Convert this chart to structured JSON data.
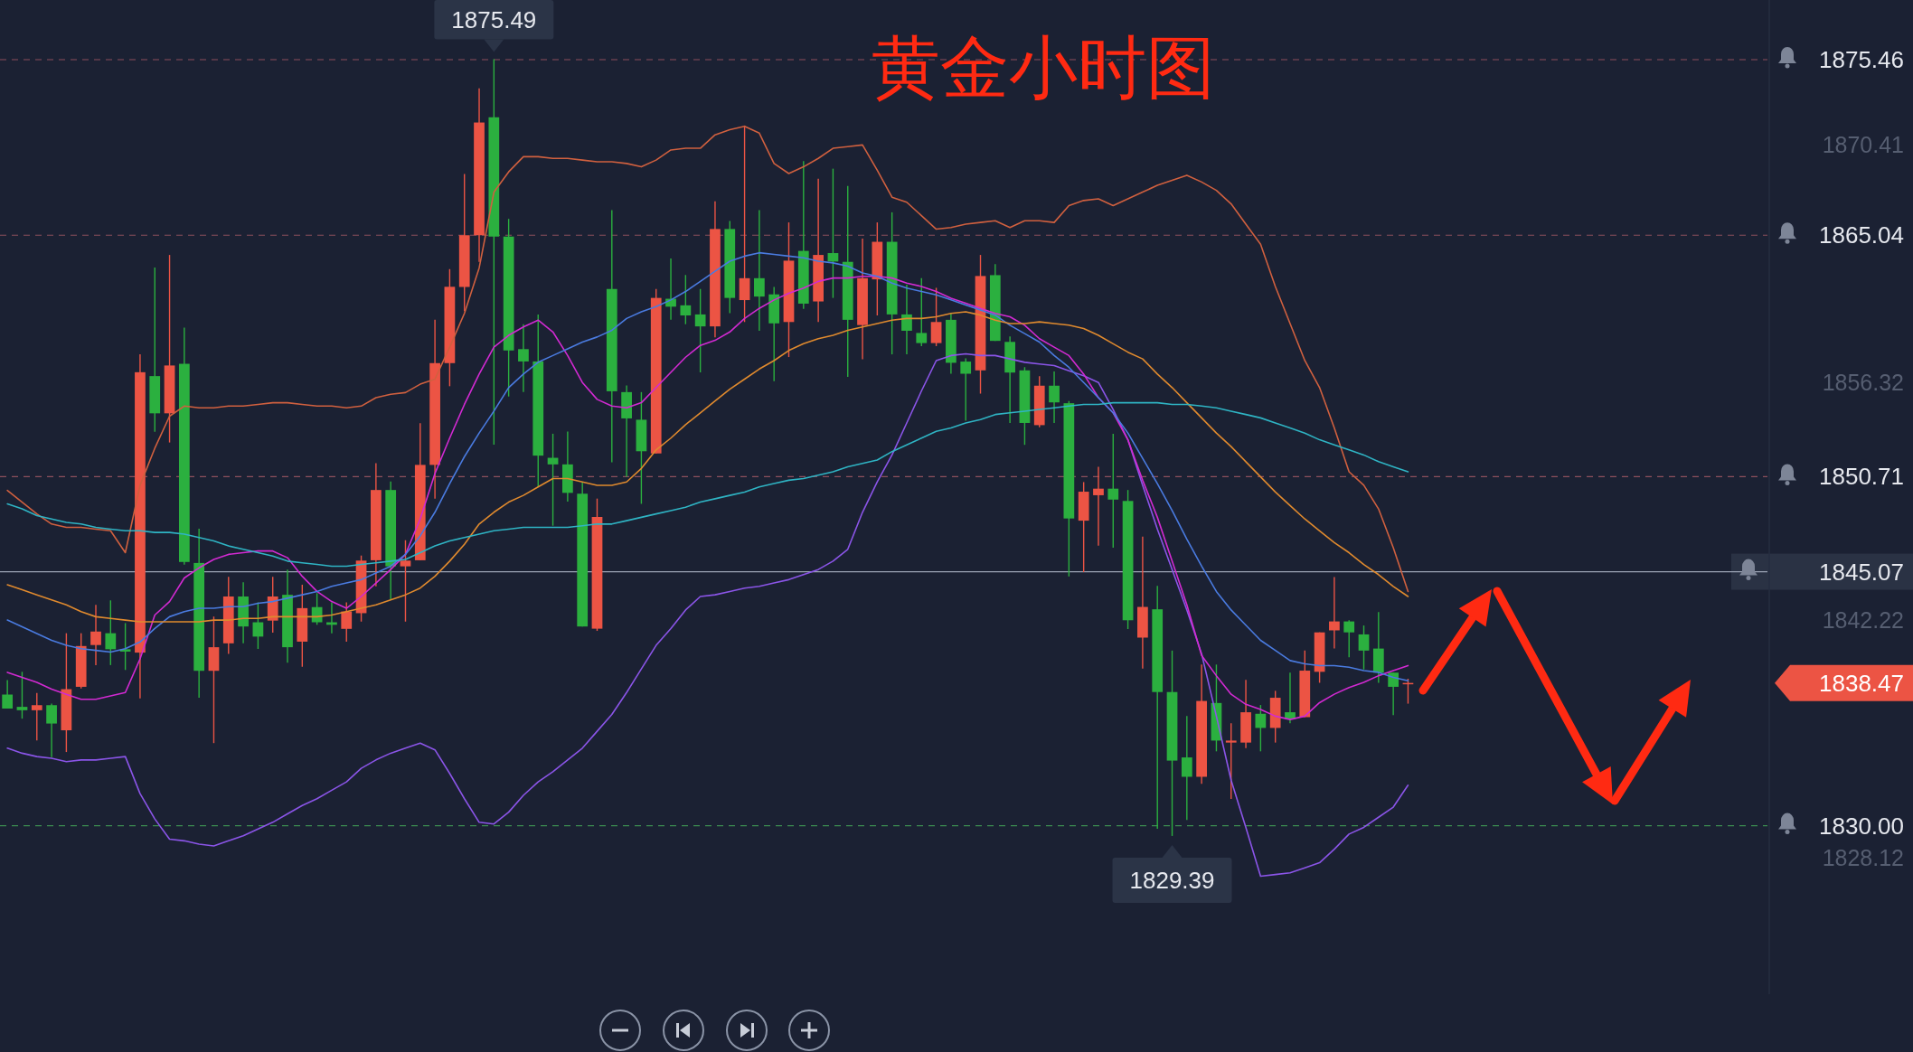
{
  "chart_data": {
    "type": "candlestick",
    "title": "黄金小时图",
    "categories": [
      null,
      null,
      null,
      null,
      null,
      null,
      null,
      null,
      null,
      null,
      null,
      null,
      null,
      null,
      null,
      null,
      null,
      null,
      null,
      null,
      null,
      null,
      null,
      null,
      null,
      null,
      null,
      null,
      null,
      null,
      null,
      null,
      null,
      null,
      null,
      null,
      null,
      null,
      null,
      null,
      null,
      null,
      null,
      null,
      null,
      null,
      null,
      null,
      null,
      null,
      null,
      null,
      null,
      null,
      null,
      null,
      null,
      null,
      null,
      null,
      null,
      null,
      null,
      null,
      null,
      null,
      null,
      null,
      null,
      null,
      null,
      null,
      null,
      null,
      null,
      null,
      null,
      null,
      null,
      null,
      null,
      null,
      null,
      null,
      null,
      null,
      null,
      null,
      null,
      null,
      null,
      null,
      null,
      null,
      null,
      null,
      null,
      null,
      null,
      null,
      null,
      null,
      null,
      null,
      null,
      null,
      null,
      null,
      null,
      null,
      null,
      null,
      null,
      null,
      null,
      null,
      null,
      null,
      null,
      null
    ],
    "ohlc": [
      [
        1837.78,
        1838.64,
        1836.95,
        1836.95
      ],
      [
        1837.05,
        1839.13,
        1836.35,
        1836.85
      ],
      [
        1836.85,
        1837.88,
        1835.06,
        1837.15
      ],
      [
        1837.15,
        1837.25,
        1834.07,
        1836.06
      ],
      [
        1835.66,
        1841.42,
        1834.37,
        1838.1
      ],
      [
        1838.24,
        1841.42,
        1838.14,
        1840.66
      ],
      [
        1840.72,
        1843.11,
        1839.53,
        1841.52
      ],
      [
        1841.42,
        1843.37,
        1839.53,
        1840.47
      ],
      [
        1840.47,
        1842.02,
        1839.24,
        1840.33
      ],
      [
        1840.27,
        1857.97,
        1837.55,
        1856.91
      ],
      [
        1856.68,
        1863.13,
        1853.38,
        1854.47
      ],
      [
        1854.47,
        1863.87,
        1852.74,
        1857.31
      ],
      [
        1857.41,
        1859.56,
        1845.49,
        1845.65
      ],
      [
        1845.59,
        1847.62,
        1837.59,
        1839.19
      ],
      [
        1839.19,
        1842.41,
        1834.9,
        1840.59
      ],
      [
        1840.82,
        1844.76,
        1840.19,
        1843.6
      ],
      [
        1843.6,
        1844.44,
        1840.82,
        1841.82
      ],
      [
        1842.07,
        1843.25,
        1840.49,
        1841.22
      ],
      [
        1842.17,
        1844.76,
        1841.46,
        1843.6
      ],
      [
        1843.7,
        1845.19,
        1839.67,
        1840.59
      ],
      [
        1840.92,
        1844.3,
        1839.43,
        1842.91
      ],
      [
        1842.97,
        1843.8,
        1841.92,
        1842.07
      ],
      [
        1842.07,
        1843.25,
        1841.42,
        1841.92
      ],
      [
        1841.68,
        1843.25,
        1840.92,
        1842.71
      ],
      [
        1842.61,
        1846.03,
        1842.11,
        1845.73
      ],
      [
        1845.75,
        1851.51,
        1844.2,
        1849.92
      ],
      [
        1849.92,
        1850.42,
        1843.41,
        1845.39
      ],
      [
        1845.39,
        1846.94,
        1842.11,
        1845.73
      ],
      [
        1845.75,
        1853.88,
        1845.75,
        1851.41
      ],
      [
        1851.41,
        1860.03,
        1849.41,
        1857.45
      ],
      [
        1857.45,
        1863.03,
        1856.08,
        1861.98
      ],
      [
        1861.97,
        1868.68,
        1860.54,
        1865.04
      ],
      [
        1865.04,
        1873.76,
        1863.46,
        1871.73
      ],
      [
        1872.04,
        1875.49,
        1852.61,
        1864.96
      ],
      [
        1864.96,
        1866.01,
        1855.47,
        1858.2
      ],
      [
        1858.28,
        1859.76,
        1855.73,
        1857.55
      ],
      [
        1857.55,
        1860.34,
        1850.09,
        1851.96
      ],
      [
        1851.83,
        1853.26,
        1847.8,
        1851.44
      ],
      [
        1851.44,
        1853.39,
        1849.23,
        1849.75
      ],
      [
        1849.7,
        1850.4,
        1841.82,
        1841.82
      ],
      [
        1841.69,
        1849.41,
        1841.56,
        1848.32
      ],
      [
        1861.85,
        1866.53,
        1851.57,
        1855.78
      ],
      [
        1855.73,
        1856.12,
        1850.71,
        1854.17
      ],
      [
        1854.09,
        1855.73,
        1849.1,
        1852.22
      ],
      [
        1852.09,
        1861.85,
        1852.09,
        1861.32
      ],
      [
        1861.27,
        1863.66,
        1860.02,
        1860.8
      ],
      [
        1860.88,
        1862.68,
        1859.76,
        1860.28
      ],
      [
        1860.34,
        1861.85,
        1856.9,
        1859.63
      ],
      [
        1859.63,
        1867.05,
        1858.98,
        1865.41
      ],
      [
        1865.41,
        1865.88,
        1860.41,
        1861.32
      ],
      [
        1861.19,
        1871.55,
        1859.89,
        1862.49
      ],
      [
        1862.49,
        1866.53,
        1859.37,
        1861.4
      ],
      [
        1861.53,
        1861.97,
        1856.38,
        1859.81
      ],
      [
        1859.89,
        1865.8,
        1857.81,
        1863.53
      ],
      [
        1864.11,
        1869.44,
        1860.67,
        1860.98
      ],
      [
        1861.11,
        1868.4,
        1859.89,
        1863.87
      ],
      [
        1863.98,
        1868.99,
        1861.32,
        1863.48
      ],
      [
        1863.46,
        1867.96,
        1856.64,
        1860.02
      ],
      [
        1859.71,
        1864.84,
        1857.68,
        1862.49
      ],
      [
        1862.42,
        1865.8,
        1860.28,
        1864.65
      ],
      [
        1864.65,
        1866.4,
        1857.97,
        1860.34
      ],
      [
        1860.34,
        1862.1,
        1857.97,
        1859.37
      ],
      [
        1859.24,
        1862.49,
        1858.46,
        1858.64
      ],
      [
        1858.64,
        1861.92,
        1858.46,
        1859.89
      ],
      [
        1860.02,
        1860.41,
        1856.82,
        1857.47
      ],
      [
        1857.54,
        1857.73,
        1854.03,
        1856.82
      ],
      [
        1857.02,
        1863.87,
        1855.64,
        1862.62
      ],
      [
        1862.67,
        1863.32,
        1858.77,
        1858.77
      ],
      [
        1858.71,
        1859.03,
        1853.9,
        1856.89
      ],
      [
        1857.02,
        1857.21,
        1852.6,
        1853.9
      ],
      [
        1853.77,
        1856.68,
        1853.64,
        1856.11
      ],
      [
        1856.11,
        1856.95,
        1853.9,
        1855.12
      ],
      [
        1855.07,
        1855.2,
        1844.79,
        1848.23
      ],
      [
        1848.1,
        1850.39,
        1845.05,
        1849.82
      ],
      [
        1849.61,
        1851.3,
        1846.62,
        1850.0
      ],
      [
        1850.0,
        1853.25,
        1846.49,
        1849.35
      ],
      [
        1849.27,
        1849.92,
        1841.67,
        1842.19
      ],
      [
        1841.16,
        1847.15,
        1839.32,
        1842.98
      ],
      [
        1842.84,
        1844.23,
        1829.81,
        1837.93
      ],
      [
        1837.93,
        1840.39,
        1829.39,
        1833.86
      ],
      [
        1834.05,
        1836.51,
        1830.34,
        1832.9
      ],
      [
        1832.9,
        1839.56,
        1832.49,
        1837.4
      ],
      [
        1837.28,
        1839.56,
        1834.41,
        1835.05
      ],
      [
        1834.93,
        1836.08,
        1831.58,
        1835.05
      ],
      [
        1834.93,
        1838.65,
        1834.6,
        1836.73
      ],
      [
        1836.64,
        1837.16,
        1834.41,
        1835.8
      ],
      [
        1835.8,
        1838.0,
        1834.93,
        1837.59
      ],
      [
        1836.73,
        1839.08,
        1836.08,
        1836.32
      ],
      [
        1836.44,
        1840.39,
        1836.44,
        1839.2
      ],
      [
        1839.13,
        1841.47,
        1838.48,
        1841.47
      ],
      [
        1841.59,
        1844.75,
        1840.51,
        1842.12
      ],
      [
        1842.12,
        1842.19,
        1839.99,
        1841.47
      ],
      [
        1841.35,
        1841.88,
        1839.27,
        1840.39
      ],
      [
        1840.51,
        1842.67,
        1838.48,
        1839.08
      ],
      [
        1839.08,
        1839.08,
        1836.56,
        1838.24
      ],
      [
        1838.41,
        1838.72,
        1837.24,
        1838.47
      ],
      null,
      null,
      null,
      null,
      null,
      null,
      null,
      null,
      null,
      null,
      null,
      null,
      null,
      null,
      null,
      null,
      null,
      null,
      null,
      null,
      null,
      null,
      null,
      null
    ],
    "colors": [
      "#2bb03f",
      "#2bb03f",
      "#ec5444",
      "#2bb03f",
      "#ec5444",
      "#ec5444",
      "#ec5444",
      "#2bb03f",
      "#2bb03f",
      "#ec5444",
      "#2bb03f",
      "#ec5444",
      "#2bb03f",
      "#2bb03f",
      "#ec5444",
      "#ec5444",
      "#2bb03f",
      "#2bb03f",
      "#ec5444",
      "#2bb03f",
      "#ec5444",
      "#2bb03f",
      "#2bb03f",
      "#ec5444",
      "#ec5444",
      "#ec5444",
      "#2bb03f",
      "#ec5444",
      "#ec5444",
      "#ec5444",
      "#ec5444",
      "#ec5444",
      "#ec5444",
      "#2bb03f",
      "#2bb03f",
      "#2bb03f",
      "#2bb03f",
      "#2bb03f",
      "#2bb03f",
      "#2bb03f",
      "#ec5444",
      "#2bb03f",
      "#2bb03f",
      "#2bb03f",
      "#ec5444",
      "#2bb03f",
      "#2bb03f",
      "#2bb03f",
      "#ec5444",
      "#2bb03f",
      "#ec5444",
      "#2bb03f",
      "#2bb03f",
      "#ec5444",
      "#2bb03f",
      "#ec5444",
      "#2bb03f",
      "#2bb03f",
      "#ec5444",
      "#ec5444",
      "#2bb03f",
      "#2bb03f",
      "#2bb03f",
      "#ec5444",
      "#2bb03f",
      "#2bb03f",
      "#ec5444",
      "#2bb03f",
      "#2bb03f",
      "#2bb03f",
      "#ec5444",
      "#2bb03f",
      "#2bb03f",
      "#ec5444",
      "#ec5444",
      "#2bb03f",
      "#2bb03f",
      "#ec5444",
      "#2bb03f",
      "#2bb03f",
      "#2bb03f",
      "#ec5444",
      "#2bb03f",
      "#ec5444",
      "#ec5444",
      "#2bb03f",
      "#ec5444",
      "#2bb03f",
      "#ec5444",
      "#ec5444",
      "#ec5444",
      "#2bb03f",
      "#2bb03f",
      "#2bb03f",
      "#2bb03f",
      "#ec5444",
      null,
      null,
      null,
      null,
      null,
      null,
      null,
      null,
      null,
      null,
      null,
      null,
      null,
      null,
      null,
      null,
      null,
      null,
      null,
      null,
      null,
      null,
      null,
      null
    ],
    "series": [
      {
        "type": "line",
        "color": "#d0603f",
        "values": [
          1849.9,
          1849.2,
          1848.5,
          1847.9,
          1847.7,
          1847.7,
          1847.6,
          1847.5,
          1846.2,
          1850.2,
          1852.4,
          1854.3,
          1854.9,
          1854.8,
          1854.8,
          1854.9,
          1854.9,
          1855.0,
          1855.1,
          1855.1,
          1855.0,
          1854.9,
          1854.9,
          1854.8,
          1854.9,
          1855.4,
          1855.6,
          1855.7,
          1856.2,
          1856.5,
          1858.4,
          1860.4,
          1863.1,
          1867.6,
          1868.8,
          1869.7,
          1869.7,
          1869.6,
          1869.6,
          1869.5,
          1869.4,
          1869.4,
          1869.3,
          1869.1,
          1869.5,
          1870.1,
          1870.2,
          1870.2,
          1871.0,
          1871.3,
          1871.5,
          1871.1,
          1869.3,
          1868.7,
          1869.1,
          1869.6,
          1870.2,
          1870.3,
          1870.4,
          1868.9,
          1867.3,
          1867.0,
          1866.2,
          1865.4,
          1865.5,
          1865.7,
          1865.8,
          1865.9,
          1865.5,
          1865.9,
          1865.9,
          1865.8,
          1866.8,
          1867.1,
          1867.2,
          1866.8,
          1867.2,
          1867.6,
          1868.0,
          1868.3,
          1868.6,
          1868.2,
          1867.7,
          1866.9,
          1865.7,
          1864.5,
          1862.0,
          1859.8,
          1857.6,
          1856.0,
          1853.6,
          1851.0,
          1850.2,
          1848.8,
          1846.5,
          1843.9,
          null,
          null,
          null,
          null,
          null,
          null,
          null,
          null,
          null,
          null,
          null,
          null,
          null,
          null,
          null,
          null,
          null,
          null,
          null,
          null,
          null,
          null,
          null,
          null
        ]
      },
      {
        "type": "line",
        "color": "#8b55e8",
        "values": [
          1834.6,
          1834.3,
          1834.1,
          1834.0,
          1833.8,
          1833.9,
          1833.9,
          1834.0,
          1834.1,
          1831.9,
          1830.4,
          1829.2,
          1829.1,
          1828.9,
          1828.8,
          1829.1,
          1829.4,
          1829.8,
          1830.2,
          1830.7,
          1831.2,
          1831.6,
          1832.1,
          1832.6,
          1833.4,
          1833.9,
          1834.3,
          1834.6,
          1834.9,
          1834.5,
          1833.1,
          1831.6,
          1830.2,
          1830.1,
          1830.8,
          1831.8,
          1832.6,
          1833.2,
          1833.9,
          1834.6,
          1835.6,
          1836.6,
          1837.9,
          1839.3,
          1840.7,
          1841.7,
          1842.8,
          1843.6,
          1843.7,
          1843.9,
          1844.1,
          1844.2,
          1844.4,
          1844.6,
          1844.9,
          1845.2,
          1845.7,
          1846.4,
          1848.6,
          1850.4,
          1852.0,
          1853.9,
          1855.8,
          1857.6,
          1857.9,
          1858.0,
          1857.9,
          1857.9,
          1857.7,
          1857.5,
          1857.4,
          1857.3,
          1857.0,
          1856.7,
          1856.3,
          1854.7,
          1852.9,
          1850.2,
          1847.6,
          1845.2,
          1842.8,
          1840.2,
          1836.5,
          1832.7,
          1829.9,
          1827.0,
          1827.1,
          1827.2,
          1827.5,
          1827.8,
          1828.6,
          1829.5,
          1829.9,
          1830.5,
          1831.1,
          1832.4,
          null,
          null,
          null,
          null,
          null,
          null,
          null,
          null,
          null,
          null,
          null,
          null,
          null,
          null,
          null,
          null,
          null,
          null,
          null,
          null,
          null,
          null,
          null,
          null
        ]
      },
      {
        "type": "line",
        "color": "#d22ad2",
        "values": [
          1839.1,
          1838.8,
          1838.5,
          1838.1,
          1837.8,
          1837.5,
          1837.5,
          1837.7,
          1837.9,
          1839.9,
          1842.5,
          1843.3,
          1844.7,
          1845.3,
          1845.8,
          1846.1,
          1846.2,
          1846.3,
          1846.3,
          1845.9,
          1844.8,
          1843.9,
          1843.3,
          1842.9,
          1843.6,
          1844.4,
          1845.2,
          1846.1,
          1848.2,
          1850.9,
          1853.0,
          1855.0,
          1856.8,
          1858.4,
          1859.1,
          1859.6,
          1860.0,
          1859.3,
          1857.9,
          1856.3,
          1855.3,
          1854.9,
          1854.8,
          1855.1,
          1856.0,
          1856.9,
          1857.8,
          1858.5,
          1858.8,
          1859.3,
          1860.1,
          1860.7,
          1861.2,
          1861.6,
          1861.9,
          1862.3,
          1862.5,
          1862.5,
          1862.6,
          1862.6,
          1862.5,
          1862.2,
          1862.0,
          1861.7,
          1861.3,
          1861.0,
          1860.7,
          1860.4,
          1860.2,
          1859.7,
          1858.9,
          1858.4,
          1857.9,
          1856.8,
          1855.4,
          1854.5,
          1852.9,
          1850.5,
          1848.3,
          1845.7,
          1843.1,
          1840.1,
          1838.9,
          1837.8,
          1837.2,
          1836.9,
          1836.5,
          1836.3,
          1836.5,
          1837.3,
          1837.8,
          1838.2,
          1838.5,
          1838.9,
          1839.2,
          1839.5,
          null,
          null,
          null,
          null,
          null,
          null,
          null,
          null,
          null,
          null,
          null,
          null,
          null,
          null,
          null,
          null,
          null,
          null,
          null,
          null,
          null,
          null,
          null,
          null
        ]
      },
      {
        "type": "line",
        "color": "#4a7be0",
        "values": [
          1842.2,
          1841.8,
          1841.4,
          1841.0,
          1840.7,
          1840.5,
          1840.4,
          1840.3,
          1840.5,
          1840.9,
          1841.7,
          1842.4,
          1842.7,
          1842.9,
          1842.9,
          1843.0,
          1843.0,
          1843.2,
          1843.3,
          1843.5,
          1843.7,
          1843.9,
          1844.2,
          1844.4,
          1844.6,
          1845.0,
          1845.4,
          1846.1,
          1847.2,
          1848.6,
          1850.3,
          1851.9,
          1853.3,
          1854.6,
          1856.0,
          1856.8,
          1857.5,
          1857.9,
          1858.3,
          1858.7,
          1859.0,
          1859.4,
          1860.1,
          1860.5,
          1860.8,
          1861.2,
          1861.7,
          1862.3,
          1862.9,
          1863.5,
          1863.8,
          1864.0,
          1863.9,
          1863.8,
          1863.7,
          1863.5,
          1863.4,
          1863.2,
          1862.8,
          1862.6,
          1862.2,
          1861.9,
          1861.7,
          1861.5,
          1861.2,
          1860.9,
          1860.6,
          1860.3,
          1859.7,
          1859.2,
          1858.7,
          1857.9,
          1857.2,
          1856.3,
          1855.4,
          1854.5,
          1853.3,
          1851.8,
          1850.3,
          1848.7,
          1847.0,
          1845.4,
          1843.9,
          1842.8,
          1841.9,
          1841.0,
          1840.4,
          1839.8,
          1839.6,
          1839.5,
          1839.5,
          1839.4,
          1839.2,
          1839.1,
          1838.8,
          1838.6,
          null,
          null,
          null,
          null,
          null,
          null,
          null,
          null,
          null,
          null,
          null,
          null,
          null,
          null,
          null,
          null,
          null,
          null,
          null,
          null,
          null,
          null,
          null,
          null
        ]
      },
      {
        "type": "line",
        "color": "#e08a2e",
        "values": [
          1844.3,
          1844.0,
          1843.7,
          1843.4,
          1843.1,
          1842.7,
          1842.4,
          1842.3,
          1842.2,
          1842.1,
          1842.1,
          1842.1,
          1842.1,
          1842.1,
          1842.2,
          1842.2,
          1842.3,
          1842.3,
          1842.4,
          1842.4,
          1842.4,
          1842.4,
          1842.5,
          1842.7,
          1842.9,
          1843.1,
          1843.4,
          1843.7,
          1844.1,
          1844.8,
          1845.7,
          1846.7,
          1847.9,
          1848.6,
          1849.2,
          1849.6,
          1850.1,
          1850.6,
          1850.6,
          1850.4,
          1850.2,
          1850.2,
          1850.4,
          1851.2,
          1852.3,
          1853.0,
          1853.8,
          1854.5,
          1855.2,
          1855.9,
          1856.5,
          1857.1,
          1857.6,
          1858.2,
          1858.6,
          1858.9,
          1859.1,
          1859.4,
          1859.6,
          1859.8,
          1860.0,
          1860.1,
          1860.1,
          1860.2,
          1860.4,
          1860.5,
          1860.3,
          1860.0,
          1859.8,
          1859.8,
          1859.9,
          1859.8,
          1859.7,
          1859.5,
          1859.1,
          1858.6,
          1858.1,
          1857.7,
          1856.8,
          1856.0,
          1855.1,
          1854.2,
          1853.3,
          1852.5,
          1851.6,
          1850.7,
          1849.8,
          1849.0,
          1848.2,
          1847.5,
          1846.8,
          1846.2,
          1845.5,
          1844.9,
          1844.2,
          1843.6,
          null,
          null,
          null,
          null,
          null,
          null,
          null,
          null,
          null,
          null,
          null,
          null,
          null,
          null,
          null,
          null,
          null,
          null,
          null,
          null,
          null,
          null,
          null,
          null
        ]
      },
      {
        "type": "line",
        "color": "#2fb4c4",
        "values": [
          1849.1,
          1848.8,
          1848.4,
          1848.2,
          1848.0,
          1847.9,
          1847.7,
          1847.6,
          1847.5,
          1847.5,
          1847.4,
          1847.4,
          1847.3,
          1847.1,
          1846.9,
          1846.6,
          1846.4,
          1846.2,
          1846.0,
          1845.7,
          1845.6,
          1845.5,
          1845.4,
          1845.4,
          1845.5,
          1845.6,
          1845.7,
          1845.8,
          1846.2,
          1846.6,
          1846.9,
          1847.1,
          1847.3,
          1847.5,
          1847.6,
          1847.7,
          1847.7,
          1847.7,
          1847.7,
          1847.8,
          1847.9,
          1847.9,
          1848.1,
          1848.3,
          1848.5,
          1848.7,
          1848.9,
          1849.2,
          1849.4,
          1849.6,
          1849.8,
          1850.1,
          1850.3,
          1850.5,
          1850.6,
          1850.8,
          1851.0,
          1851.3,
          1851.5,
          1851.7,
          1852.2,
          1852.6,
          1853.0,
          1853.4,
          1853.6,
          1853.9,
          1854.1,
          1854.4,
          1854.5,
          1854.6,
          1854.7,
          1854.8,
          1854.9,
          1855.0,
          1855.0,
          1855.1,
          1855.1,
          1855.1,
          1855.1,
          1855.0,
          1855.0,
          1854.9,
          1854.8,
          1854.6,
          1854.4,
          1854.2,
          1853.9,
          1853.6,
          1853.3,
          1852.9,
          1852.6,
          1852.3,
          1852.0,
          1851.6,
          1851.3,
          1851.0,
          null,
          null,
          null,
          null,
          null,
          null,
          null,
          null,
          null,
          null,
          null,
          null,
          null,
          null,
          null,
          null,
          null,
          null,
          null,
          null,
          null,
          null,
          null,
          null
        ]
      }
    ],
    "ylim": [
      1820,
      1879
    ],
    "yticks": [
      1870.41,
      1856.32,
      1842.22,
      1828.12
    ],
    "tick_labels": "y",
    "ref_lines": [
      {
        "axis": "y",
        "value": 1875.46,
        "label": "1875.46",
        "color": "#8d4f5c",
        "line_style": "dashed"
      },
      {
        "axis": "y",
        "value": 1865.04,
        "label": "1865.04",
        "color": "#8d4f5c",
        "line_style": "dashed"
      },
      {
        "axis": "y",
        "value": 1850.71,
        "label": "1850.71",
        "color": "#8d4f5c",
        "line_style": "dashed"
      },
      {
        "axis": "y",
        "value": 1845.07,
        "label": "1845.07",
        "color": "#9aa2b3",
        "line_style": "solid"
      },
      {
        "axis": "y",
        "value": 1830.0,
        "label": "1830.00",
        "color": "#3c8c50",
        "line_style": "dashed"
      }
    ],
    "annotations": [
      {
        "text": "1875.49",
        "y": 1875.49
      },
      {
        "text": "1829.39",
        "y": 1829.39
      },
      "1838.47"
    ]
  }
}
